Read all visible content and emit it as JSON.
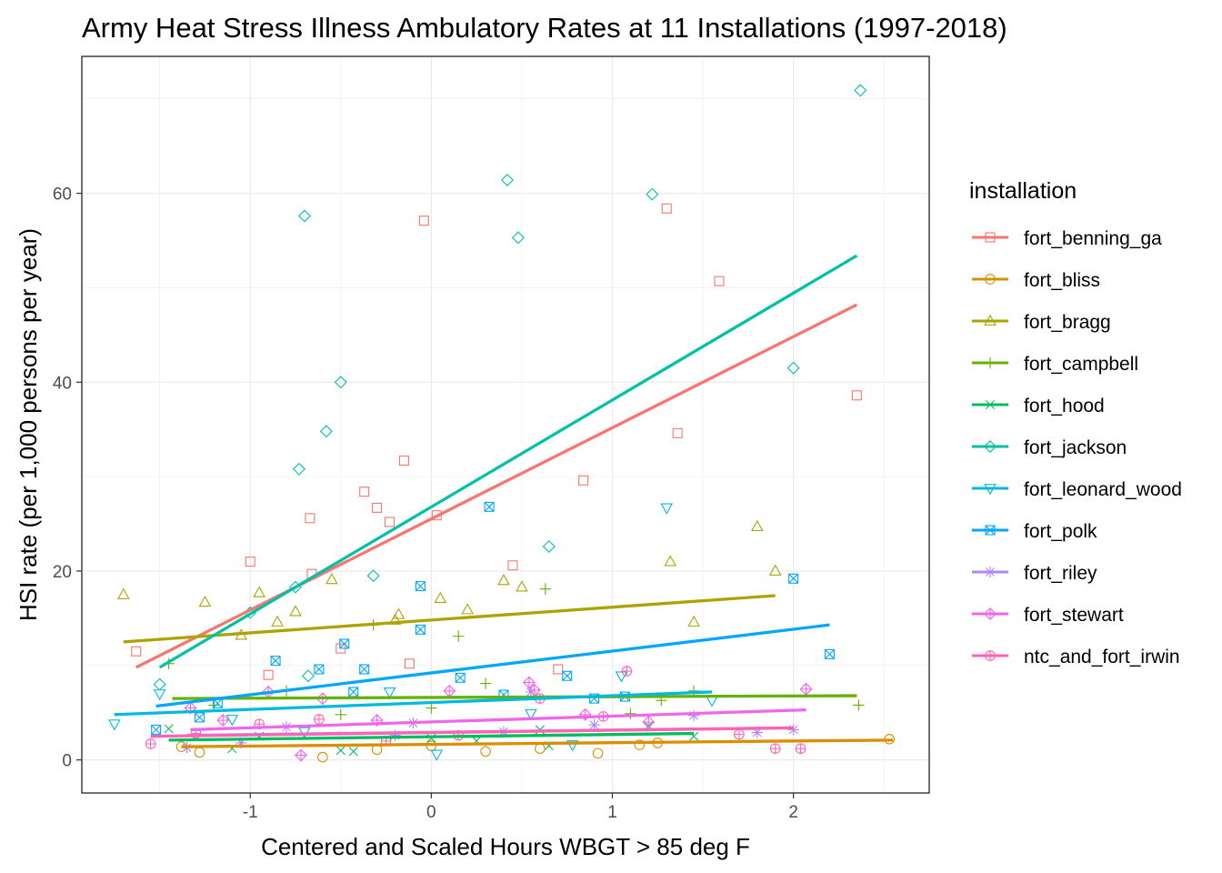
{
  "chart_data": {
    "type": "scatter",
    "title": "Army Heat Stress Illness Ambulatory Rates at 11 Installations (1997-2018)",
    "xlabel": "Centered and Scaled Hours WBGT > 85 deg F",
    "ylabel": "HSI rate (per 1,000 persons per year)",
    "xlim": [
      -1.93,
      2.75
    ],
    "ylim": [
      -3.5,
      74.5
    ],
    "x_ticks": [
      -1,
      0,
      1,
      2
    ],
    "y_ticks": [
      0,
      20,
      40,
      60
    ],
    "grid": true,
    "legend": {
      "title": "installation",
      "position": "right"
    },
    "series": [
      {
        "name": "fort_benning_ga",
        "color": "#F8766D",
        "shape": "square",
        "trend": [
          [
            -1.63,
            9.8
          ],
          [
            2.35,
            48.2
          ]
        ],
        "points": [
          [
            -1.63,
            11.5
          ],
          [
            -1.0,
            21.0
          ],
          [
            -0.9,
            9.0
          ],
          [
            -0.67,
            25.6
          ],
          [
            -0.66,
            19.7
          ],
          [
            -0.5,
            11.8
          ],
          [
            -0.37,
            28.4
          ],
          [
            -0.3,
            26.7
          ],
          [
            -0.23,
            25.2
          ],
          [
            -0.15,
            31.7
          ],
          [
            -0.12,
            10.2
          ],
          [
            -0.04,
            57.1
          ],
          [
            0.03,
            25.9
          ],
          [
            0.45,
            20.6
          ],
          [
            0.7,
            9.6
          ],
          [
            0.84,
            29.6
          ],
          [
            1.3,
            58.4
          ],
          [
            1.36,
            34.6
          ],
          [
            1.59,
            50.7
          ],
          [
            2.35,
            38.6
          ]
        ]
      },
      {
        "name": "fort_bliss",
        "color": "#DB8E00",
        "shape": "circle",
        "trend": [
          [
            -1.38,
            1.4
          ],
          [
            2.55,
            2.1
          ]
        ],
        "points": [
          [
            -1.38,
            1.4
          ],
          [
            -1.28,
            0.8
          ],
          [
            -0.6,
            0.3
          ],
          [
            -0.3,
            1.1
          ],
          [
            0.0,
            1.5
          ],
          [
            0.3,
            0.9
          ],
          [
            0.6,
            1.2
          ],
          [
            0.92,
            0.7
          ],
          [
            1.15,
            1.6
          ],
          [
            1.25,
            1.8
          ],
          [
            2.53,
            2.2
          ]
        ]
      },
      {
        "name": "fort_bragg",
        "color": "#AEA200",
        "shape": "triangle",
        "trend": [
          [
            -1.7,
            12.5
          ],
          [
            1.9,
            17.4
          ]
        ],
        "points": [
          [
            -1.7,
            17.5
          ],
          [
            -1.25,
            16.7
          ],
          [
            -1.05,
            13.2
          ],
          [
            -0.95,
            17.7
          ],
          [
            -0.85,
            14.6
          ],
          [
            -0.75,
            15.7
          ],
          [
            -0.55,
            19.1
          ],
          [
            -0.2,
            14.8
          ],
          [
            -0.18,
            15.4
          ],
          [
            0.05,
            17.1
          ],
          [
            0.2,
            15.9
          ],
          [
            0.4,
            19.0
          ],
          [
            0.5,
            18.3
          ],
          [
            1.32,
            21.0
          ],
          [
            1.45,
            14.6
          ],
          [
            1.8,
            24.7
          ],
          [
            1.9,
            20.0
          ]
        ]
      },
      {
        "name": "fort_campbell",
        "color": "#64B200",
        "shape": "plus",
        "trend": [
          [
            -1.43,
            6.5
          ],
          [
            2.35,
            6.8
          ]
        ],
        "points": [
          [
            -1.45,
            10.2
          ],
          [
            -1.2,
            5.8
          ],
          [
            -0.8,
            7.3
          ],
          [
            -0.5,
            4.8
          ],
          [
            -0.32,
            14.3
          ],
          [
            0.0,
            5.5
          ],
          [
            0.15,
            13.1
          ],
          [
            0.3,
            8.1
          ],
          [
            0.63,
            18.1
          ],
          [
            1.1,
            4.9
          ],
          [
            1.27,
            6.3
          ],
          [
            1.45,
            7.3
          ],
          [
            2.36,
            5.8
          ]
        ]
      },
      {
        "name": "fort_hood",
        "color": "#00BD5C",
        "shape": "cross",
        "trend": [
          [
            -1.45,
            2.1
          ],
          [
            1.45,
            2.8
          ]
        ],
        "points": [
          [
            -1.45,
            3.3
          ],
          [
            -1.1,
            1.2
          ],
          [
            -0.95,
            2.5
          ],
          [
            -0.5,
            1.0
          ],
          [
            -0.43,
            0.9
          ],
          [
            0.0,
            2.3
          ],
          [
            0.25,
            2.0
          ],
          [
            0.6,
            3.2
          ],
          [
            0.65,
            1.5
          ],
          [
            1.2,
            3.6
          ],
          [
            1.45,
            2.5
          ]
        ]
      },
      {
        "name": "fort_jackson",
        "color": "#00C1A7",
        "shape": "diamond",
        "trend": [
          [
            -1.5,
            9.8
          ],
          [
            2.35,
            53.4
          ]
        ],
        "points": [
          [
            -1.5,
            8.0
          ],
          [
            -1.0,
            15.6
          ],
          [
            -0.75,
            18.3
          ],
          [
            -0.73,
            30.8
          ],
          [
            -0.7,
            57.6
          ],
          [
            -0.68,
            8.9
          ],
          [
            -0.58,
            34.8
          ],
          [
            -0.5,
            40.0
          ],
          [
            -0.32,
            19.5
          ],
          [
            0.42,
            61.4
          ],
          [
            0.48,
            55.3
          ],
          [
            0.65,
            22.6
          ],
          [
            1.22,
            59.9
          ],
          [
            2.0,
            41.5
          ],
          [
            2.37,
            70.9
          ]
        ]
      },
      {
        "name": "fort_leonard_wood",
        "color": "#00BADE",
        "shape": "triangle-down",
        "trend": [
          [
            -1.75,
            4.8
          ],
          [
            1.55,
            7.2
          ]
        ],
        "points": [
          [
            -1.75,
            3.8
          ],
          [
            -1.5,
            7.0
          ],
          [
            -1.1,
            4.3
          ],
          [
            -0.7,
            3.0
          ],
          [
            -0.23,
            7.2
          ],
          [
            0.03,
            0.6
          ],
          [
            0.55,
            4.9
          ],
          [
            0.78,
            1.6
          ],
          [
            1.05,
            8.9
          ],
          [
            1.3,
            26.7
          ],
          [
            1.55,
            6.3
          ]
        ]
      },
      {
        "name": "fort_polk",
        "color": "#00A6FF",
        "shape": "square-cross",
        "trend": [
          [
            -1.52,
            5.7
          ],
          [
            2.2,
            14.3
          ]
        ],
        "points": [
          [
            -1.52,
            3.2
          ],
          [
            -1.28,
            4.5
          ],
          [
            -1.18,
            6.0
          ],
          [
            -0.86,
            10.5
          ],
          [
            -0.62,
            9.6
          ],
          [
            -0.48,
            12.3
          ],
          [
            -0.43,
            7.2
          ],
          [
            -0.37,
            9.6
          ],
          [
            -0.06,
            18.4
          ],
          [
            -0.06,
            13.8
          ],
          [
            0.16,
            8.7
          ],
          [
            0.32,
            26.8
          ],
          [
            0.4,
            6.9
          ],
          [
            0.75,
            8.9
          ],
          [
            0.9,
            6.5
          ],
          [
            1.07,
            6.7
          ],
          [
            2.0,
            19.2
          ],
          [
            2.2,
            11.2
          ]
        ]
      },
      {
        "name": "fort_riley",
        "color": "#B385FF",
        "shape": "asterisk",
        "trend": [
          [
            -1.35,
            2.6
          ],
          [
            2.0,
            3.4
          ]
        ],
        "points": [
          [
            -1.35,
            1.3
          ],
          [
            -1.05,
            1.8
          ],
          [
            -0.8,
            3.5
          ],
          [
            -0.2,
            2.6
          ],
          [
            -0.1,
            3.9
          ],
          [
            0.4,
            3.0
          ],
          [
            0.55,
            7.2
          ],
          [
            0.9,
            3.7
          ],
          [
            1.45,
            4.7
          ],
          [
            1.8,
            2.9
          ],
          [
            2.0,
            3.2
          ]
        ]
      },
      {
        "name": "fort_stewart",
        "color": "#EF67EB",
        "shape": "diamond-plus",
        "trend": [
          [
            -1.33,
            3.2
          ],
          [
            2.07,
            5.3
          ]
        ],
        "points": [
          [
            -1.33,
            5.5
          ],
          [
            -1.15,
            4.2
          ],
          [
            -0.9,
            7.2
          ],
          [
            -0.72,
            0.5
          ],
          [
            -0.6,
            6.5
          ],
          [
            -0.3,
            4.2
          ],
          [
            0.1,
            7.3
          ],
          [
            0.54,
            8.2
          ],
          [
            0.57,
            7.4
          ],
          [
            0.85,
            4.8
          ],
          [
            1.2,
            4.0
          ],
          [
            2.07,
            7.5
          ]
        ]
      },
      {
        "name": "ntc_and_fort_irwin",
        "color": "#FF63B6",
        "shape": "circle-plus",
        "trend": [
          [
            -1.55,
            2.5
          ],
          [
            2.0,
            3.4
          ]
        ],
        "points": [
          [
            -1.55,
            1.7
          ],
          [
            -1.3,
            2.8
          ],
          [
            -0.95,
            3.8
          ],
          [
            -0.62,
            4.3
          ],
          [
            -0.25,
            2.0
          ],
          [
            0.15,
            2.6
          ],
          [
            0.6,
            6.5
          ],
          [
            0.95,
            4.6
          ],
          [
            1.08,
            9.4
          ],
          [
            1.7,
            2.7
          ],
          [
            1.9,
            1.2
          ],
          [
            2.04,
            1.2
          ]
        ]
      }
    ]
  }
}
